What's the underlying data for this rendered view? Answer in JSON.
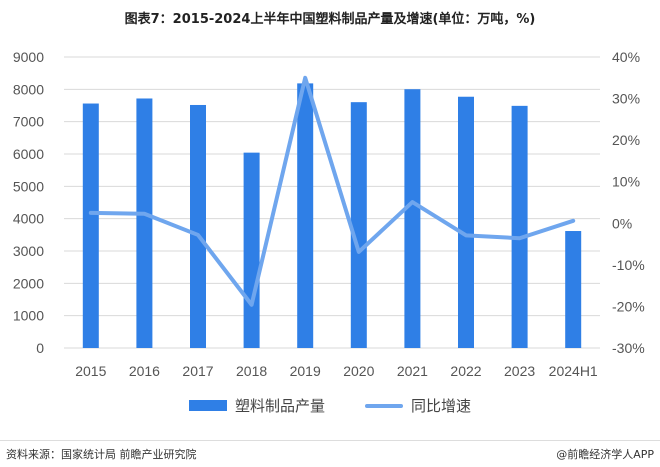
{
  "title": "图表7：2015-2024上半年中国塑料制品产量及增速(单位：万吨，%)",
  "chart_data": {
    "type": "bar+line",
    "title": "图表7：2015-2024上半年中国塑料制品产量及增速(单位：万吨，%)",
    "categories": [
      "2015",
      "2016",
      "2017",
      "2018",
      "2019",
      "2020",
      "2021",
      "2022",
      "2023",
      "2024H1"
    ],
    "series": [
      {
        "name": "塑料制品产量",
        "type": "bar",
        "axis": "left",
        "color": "#2f7fe6",
        "values": [
          7561,
          7717,
          7516,
          6042,
          8184,
          7603,
          8004,
          7771,
          7489,
          3618
        ]
      },
      {
        "name": "同比增速",
        "type": "line",
        "axis": "right",
        "color": "#6fa6ee",
        "values": [
          2.5,
          2.3,
          -2.8,
          -19.6,
          35.0,
          -6.9,
          5.1,
          -2.9,
          -3.6,
          0.6
        ]
      }
    ],
    "ylim_left": [
      0,
      9000
    ],
    "yticks_left": [
      "0",
      "1000",
      "2000",
      "3000",
      "4000",
      "5000",
      "6000",
      "7000",
      "8000",
      "9000"
    ],
    "ylim_right": [
      -30,
      40
    ],
    "yticks_right": [
      "-30%",
      "-20%",
      "-10%",
      "0%",
      "10%",
      "20%",
      "30%",
      "40%"
    ],
    "grid": true,
    "legend": "bottom"
  },
  "footer": {
    "source": "资料来源：国家统计局 前瞻产业研究院",
    "brand": "@前瞻经济学人APP"
  }
}
